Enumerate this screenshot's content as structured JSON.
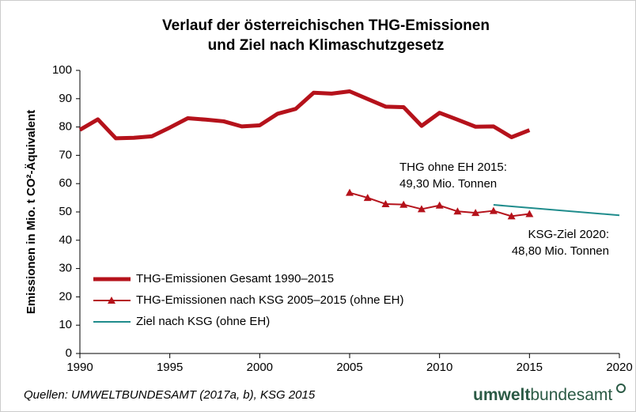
{
  "chart_data": {
    "type": "line",
    "title": [
      "Verlauf der österreichischen THG-Emissionen",
      "und Ziel nach Klimaschutzgesetz"
    ],
    "ylabel": "Emissionen in Mio. t CO²-Äquivalent",
    "xlim": [
      1990,
      2020
    ],
    "xticks": [
      1990,
      1995,
      2000,
      2005,
      2010,
      2015,
      2020
    ],
    "ylim": [
      0,
      100
    ],
    "yticks": [
      0,
      10,
      20,
      30,
      40,
      50,
      60,
      70,
      80,
      90,
      100
    ],
    "series": [
      {
        "name": "THG-Emissionen Gesamt 1990–2015",
        "color": "#b5121b",
        "marker": false,
        "x": [
          1990,
          1991,
          1992,
          1993,
          1994,
          1995,
          1996,
          1997,
          1998,
          1999,
          2000,
          2001,
          2002,
          2003,
          2004,
          2005,
          2006,
          2007,
          2008,
          2009,
          2010,
          2011,
          2012,
          2013,
          2014,
          2015
        ],
        "values": [
          79,
          82.7,
          76,
          76.2,
          76.7,
          79.8,
          83.1,
          82.6,
          82,
          80.2,
          80.6,
          84.7,
          86.4,
          92.1,
          91.8,
          92.6,
          89.9,
          87.2,
          87,
          80.4,
          85,
          82.6,
          80.1,
          80.2,
          76.4,
          78.9
        ]
      },
      {
        "name": "THG-Emissionen nach KSG 2005–2015 (ohne EH)",
        "color": "#b5121b",
        "marker": true,
        "x": [
          2005,
          2006,
          2007,
          2008,
          2009,
          2010,
          2011,
          2012,
          2013,
          2014,
          2015
        ],
        "values": [
          56.8,
          55,
          52.8,
          52.6,
          51,
          52.3,
          50.2,
          49.7,
          50.4,
          48.5,
          49.3
        ]
      },
      {
        "name": "Ziel nach KSG (ohne EH)",
        "color": "#1f8c8c",
        "marker": false,
        "x": [
          2013,
          2020
        ],
        "values": [
          52.5,
          48.8
        ]
      }
    ],
    "annotations": [
      [
        "THG ohne EH 2015:",
        "49,30 Mio. Tonnen"
      ],
      [
        "KSG-Ziel 2020:",
        "48,80 Mio. Tonnen"
      ]
    ],
    "source": "Quellen: UMWELTBUNDESAMT (2017a, b), KSG 2015",
    "logo": [
      "umwelt",
      "bundesamt"
    ]
  }
}
